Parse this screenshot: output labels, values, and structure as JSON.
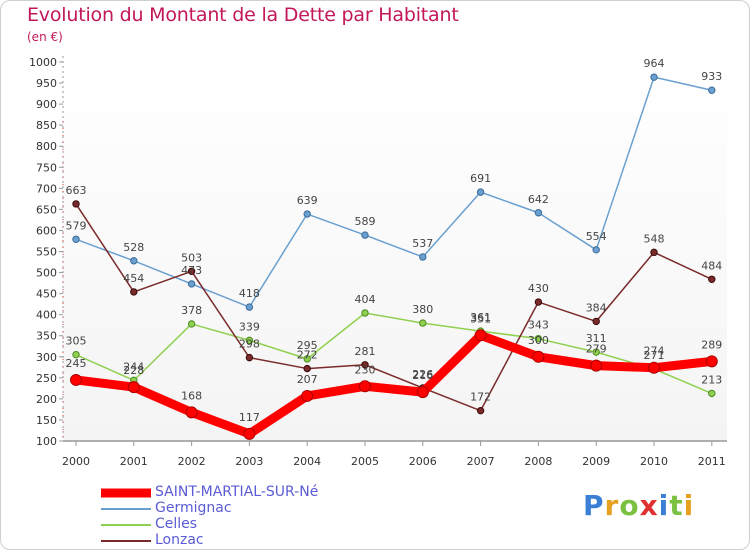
{
  "title": "Evolution du Montant de la Dette par Habitant",
  "unit_label": "(en €)",
  "logo_text": "Proxiti",
  "chart_data": {
    "type": "line",
    "x": [
      "2000",
      "2001",
      "2002",
      "2003",
      "2004",
      "2005",
      "2006",
      "2007",
      "2008",
      "2009",
      "2010",
      "2011"
    ],
    "ylim": [
      100,
      1000
    ],
    "yticks": [
      100,
      150,
      200,
      250,
      300,
      350,
      400,
      450,
      500,
      550,
      600,
      650,
      700,
      750,
      800,
      850,
      900,
      950,
      1000
    ],
    "grid": false,
    "legend_position": "bottom-left",
    "series": [
      {
        "name": "Germignac",
        "color": "#6aa0d0",
        "values": [
          579,
          528,
          473,
          418,
          639,
          589,
          537,
          691,
          642,
          554,
          964,
          933
        ]
      },
      {
        "name": "Celles",
        "color": "#90d050",
        "values": [
          305,
          244,
          378,
          339,
          295,
          404,
          380,
          361,
          343,
          311,
          271,
          213
        ]
      },
      {
        "name": "Lonzac",
        "color": "#7a2a2a",
        "values": [
          663,
          454,
          503,
          298,
          272,
          281,
          226,
          172,
          430,
          384,
          548,
          484
        ]
      },
      {
        "name": "SAINT-MARTIAL-SUR-Né",
        "color": "#ff0000",
        "values": [
          245,
          228,
          168,
          117,
          207,
          230,
          216,
          351,
          300,
          279,
          274,
          289
        ]
      }
    ]
  }
}
